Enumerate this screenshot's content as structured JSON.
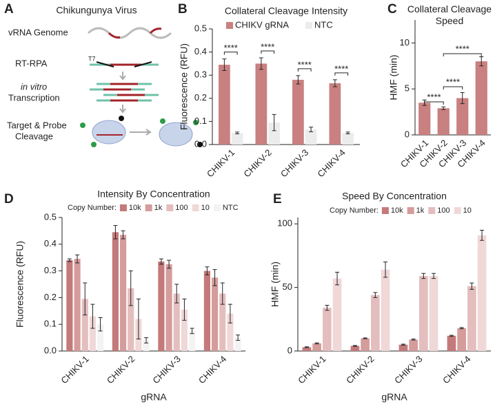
{
  "panel_a": {
    "label": "A",
    "title": "Chikungunya Virus",
    "primer_label": "T7",
    "steps": [
      [
        "vRNA Genome"
      ],
      [
        "RT-RPA"
      ],
      [
        "in vitro",
        "Transcription"
      ],
      [
        "Target & Probe",
        "Cleavage"
      ]
    ]
  },
  "chart_data": [
    {
      "type": "bar",
      "label": "B",
      "title": "Collateral Cleavage Intensity",
      "ylabel": "Fluorescence (RFU)",
      "categories": [
        "CHIKV-1",
        "CHIKV-2",
        "CHIKV-3",
        "CHIKV-4"
      ],
      "series": [
        {
          "name": "CHIKV gRNA",
          "color": "#c98080",
          "values": [
            0.345,
            0.35,
            0.28,
            0.265
          ],
          "errors": [
            0.025,
            0.025,
            0.018,
            0.015
          ]
        },
        {
          "name": "NTC",
          "color": "#ececec",
          "values": [
            0.05,
            0.095,
            0.065,
            0.05
          ],
          "errors": [
            0.004,
            0.035,
            0.01,
            0.004
          ]
        }
      ],
      "ylim": [
        0,
        0.5
      ],
      "yticks": [
        {
          "value": 0,
          "label": "0.0"
        },
        0.1,
        0.2,
        0.3,
        0.4,
        0.5
      ],
      "annotations": [
        "****",
        "****",
        "****",
        "****"
      ],
      "legend": true
    },
    {
      "type": "bar",
      "label": "C",
      "title": "Collateral Cleavage Speed",
      "ylabel": "HMF (min)",
      "categories": [
        "CHIKV-1",
        "CHIKV-2",
        "CHIKV-3",
        "CHIKV-4"
      ],
      "values": [
        3.5,
        2.9,
        4.0,
        8.0
      ],
      "errors": [
        0.3,
        0.15,
        0.6,
        0.5
      ],
      "color": "#c98080",
      "ylim": [
        0,
        12.5
      ],
      "yticks": [
        0,
        5,
        10
      ],
      "annotations": [
        "****",
        "****",
        "****"
      ]
    },
    {
      "type": "bar",
      "label": "D",
      "title": "Intensity By Concentration",
      "ylabel": "Fluorescence (RFU)",
      "xlabel": "gRNA",
      "categories": [
        "CHIKV-1",
        "CHIKV-2",
        "CHIKV-3",
        "CHIKV-4"
      ],
      "legend_title": "Copy Number:",
      "series": [
        {
          "name": "10k",
          "color": "#c47a7a",
          "values": [
            0.34,
            0.445,
            0.335,
            0.3
          ],
          "errors": [
            0.005,
            0.025,
            0.01,
            0.015
          ]
        },
        {
          "name": "1k",
          "color": "#d59c9c",
          "values": [
            0.345,
            0.435,
            0.325,
            0.275
          ],
          "errors": [
            0.015,
            0.015,
            0.015,
            0.03
          ]
        },
        {
          "name": "100",
          "color": "#e4bebe",
          "values": [
            0.195,
            0.235,
            0.215,
            0.215
          ],
          "errors": [
            0.06,
            0.065,
            0.035,
            0.04
          ]
        },
        {
          "name": "10",
          "color": "#f0d8d8",
          "values": [
            0.13,
            0.12,
            0.155,
            0.14
          ],
          "errors": [
            0.045,
            0.075,
            0.04,
            0.035
          ]
        },
        {
          "name": "NTC",
          "color": "#f3f3f3",
          "values": [
            0.1,
            0.04,
            0.075,
            0.05
          ],
          "errors": [
            0.025,
            0.01,
            0.01,
            0.01
          ]
        }
      ],
      "ylim": [
        0,
        0.5
      ],
      "yticks": [
        {
          "value": 0,
          "label": "0.0"
        },
        0.1,
        0.2,
        0.3,
        0.4,
        0.5
      ],
      "legend": true
    },
    {
      "type": "bar",
      "label": "E",
      "title": "Speed By Concentration",
      "ylabel": "HMF (min)",
      "xlabel": "gRNA",
      "categories": [
        "CHIKV-1",
        "CHIKV-2",
        "CHIKV-3",
        "CHIKV-4"
      ],
      "legend_title": "Copy Number:",
      "series": [
        {
          "name": "10k",
          "color": "#c47a7a",
          "values": [
            3,
            4,
            5,
            12
          ],
          "errors": [
            0.3,
            0.3,
            0.4,
            0.4
          ]
        },
        {
          "name": "1k",
          "color": "#d59c9c",
          "values": [
            6,
            10,
            9,
            18
          ],
          "errors": [
            0.4,
            0.3,
            0.4,
            0.5
          ]
        },
        {
          "name": "100",
          "color": "#e4bebe",
          "values": [
            34,
            44,
            59,
            51
          ],
          "errors": [
            2,
            2,
            2,
            2.5
          ]
        },
        {
          "name": "10",
          "color": "#f0d8d8",
          "values": [
            57,
            64,
            59,
            91
          ],
          "errors": [
            5,
            6,
            2,
            4
          ]
        }
      ],
      "ylim": [
        0,
        105
      ],
      "yticks": [
        0,
        50,
        100
      ],
      "legend": true
    }
  ]
}
